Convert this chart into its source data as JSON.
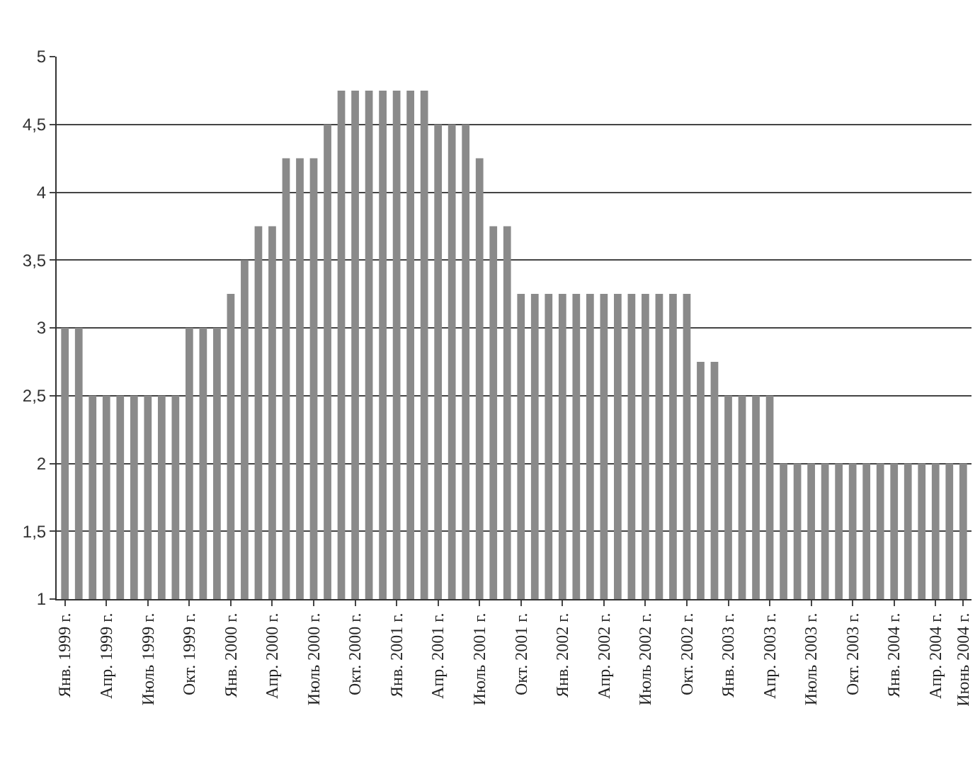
{
  "chart_data": {
    "type": "bar",
    "categories": [
      "Янв. 1999 г.",
      null,
      null,
      "Апр. 1999 г.",
      null,
      null,
      "Июль 1999 г.",
      null,
      null,
      "Окт. 1999 г.",
      null,
      null,
      "Янв. 2000 г.",
      null,
      null,
      "Апр. 2000 г.",
      null,
      null,
      "Июль 2000 г.",
      null,
      null,
      "Окт. 2000 г.",
      null,
      null,
      "Янв. 2001 г.",
      null,
      null,
      "Апр. 2001 г.",
      null,
      null,
      "Июль 2001 г.",
      null,
      null,
      "Окт. 2001 г.",
      null,
      null,
      "Янв. 2002 г.",
      null,
      null,
      "Апр. 2002 г.",
      null,
      null,
      "Июль 2002 г.",
      null,
      null,
      "Окт. 2002 г.",
      null,
      null,
      "Янв. 2003 г.",
      null,
      null,
      "Апр. 2003 г.",
      null,
      null,
      "Июль 2003 г.",
      null,
      null,
      "Окт. 2003 г.",
      null,
      null,
      "Янв. 2004 г.",
      null,
      null,
      "Апр. 2004 г.",
      null,
      "Июнь 2004 г."
    ],
    "values": [
      3,
      3,
      2.5,
      2.5,
      2.5,
      2.5,
      2.5,
      2.5,
      2.5,
      3,
      3,
      3,
      3.25,
      3.5,
      3.75,
      3.75,
      4.25,
      4.25,
      4.25,
      4.5,
      4.75,
      4.75,
      4.75,
      4.75,
      4.75,
      4.75,
      4.75,
      4.5,
      4.5,
      4.5,
      4.25,
      3.75,
      3.75,
      3.25,
      3.25,
      3.25,
      3.25,
      3.25,
      3.25,
      3.25,
      3.25,
      3.25,
      3.25,
      3.25,
      3.25,
      3.25,
      2.75,
      2.75,
      2.5,
      2.5,
      2.5,
      2.5,
      2,
      2,
      2,
      2,
      2,
      2,
      2,
      2,
      2,
      2,
      2,
      2,
      2,
      2
    ],
    "color": "#8a8a8a",
    "ylim": [
      1,
      5
    ],
    "yticks": [
      1,
      {
        "value": 1.5,
        "label": "1,5"
      },
      2,
      {
        "value": 2.5,
        "label": "2,5"
      },
      3,
      {
        "value": 3.5,
        "label": "3,5"
      },
      4,
      {
        "value": 4.5,
        "label": "4,5"
      },
      5
    ],
    "grid": "y"
  }
}
